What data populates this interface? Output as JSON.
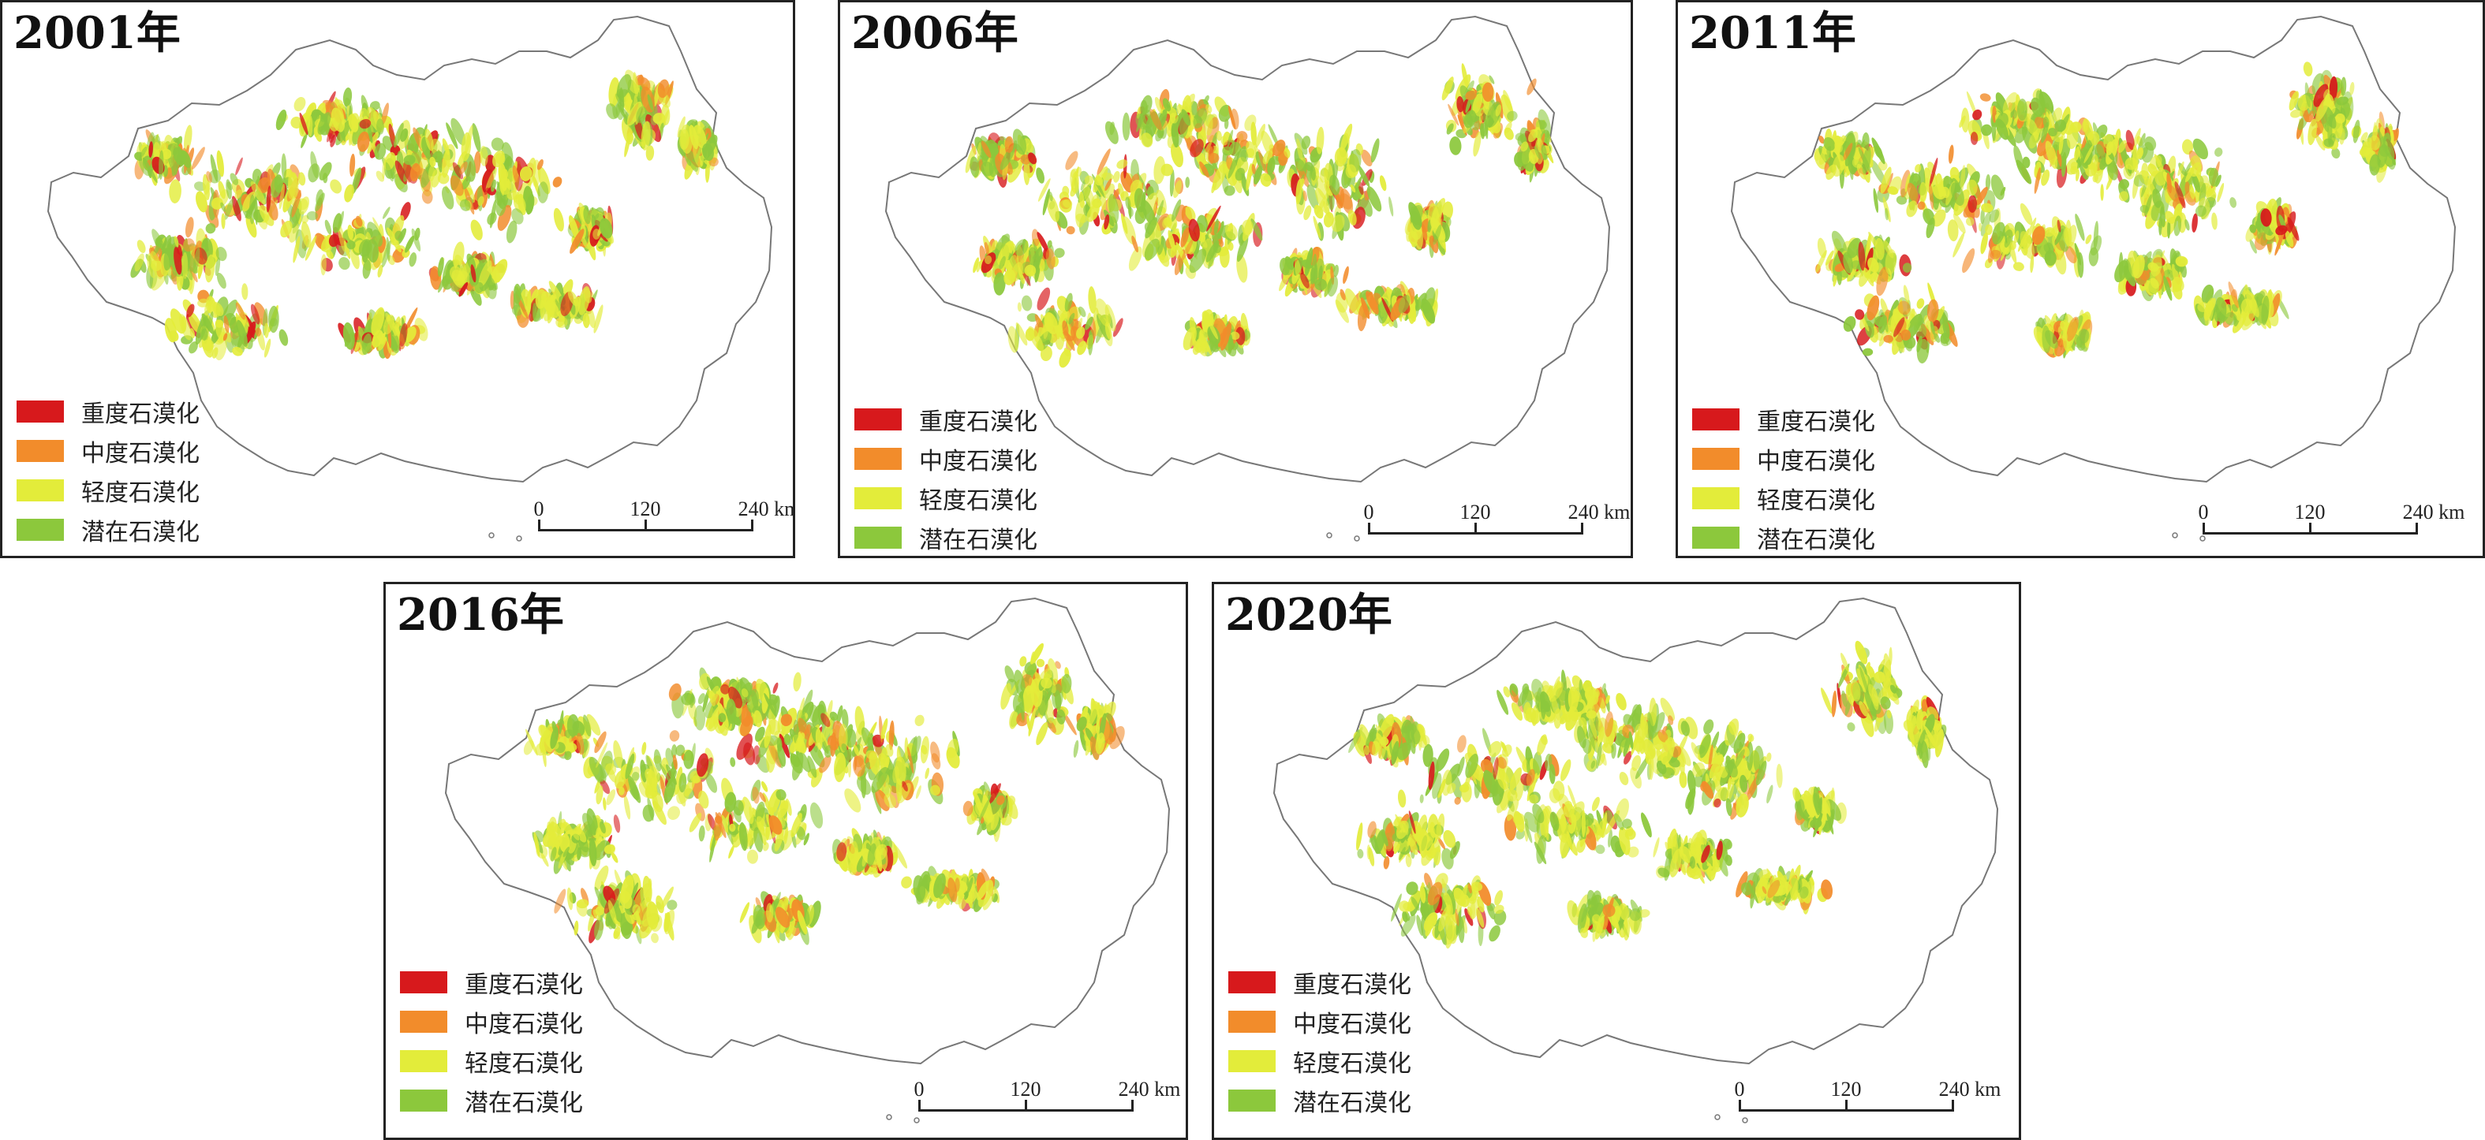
{
  "panels": [
    {
      "year_label": "2001年"
    },
    {
      "year_label": "2006年"
    },
    {
      "year_label": "2011年"
    },
    {
      "year_label": "2016年"
    },
    {
      "year_label": "2020年"
    }
  ],
  "legend": [
    {
      "label": "重度石漠化",
      "color": "#d7191c"
    },
    {
      "label": "中度石漠化",
      "color": "#f28c2b"
    },
    {
      "label": "轻度石漠化",
      "color": "#e3ec3a"
    },
    {
      "label": "潜在石漠化",
      "color": "#8cc83c"
    }
  ],
  "scale": {
    "ticks": [
      "0",
      "120",
      "240 km"
    ]
  },
  "colors": {
    "boundary": "#777777",
    "frame": "#222222"
  }
}
